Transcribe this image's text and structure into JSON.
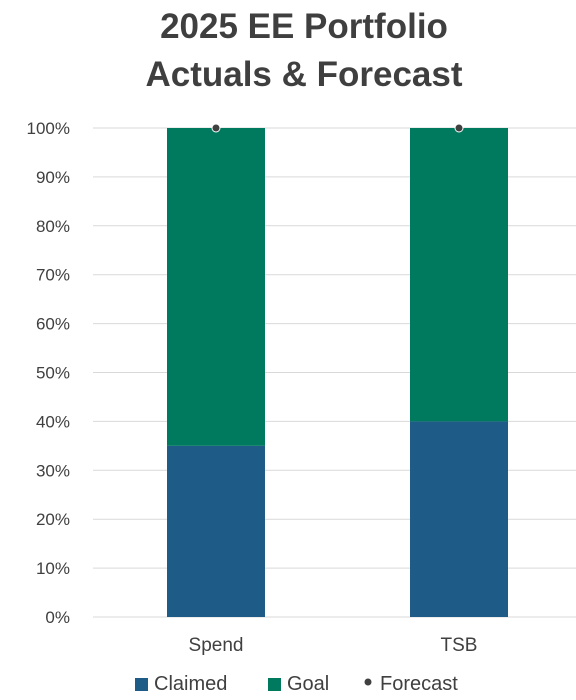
{
  "chart_data": {
    "type": "bar",
    "stacked": true,
    "title": [
      "2025 EE Portfolio",
      "Actuals & Forecast"
    ],
    "categories": [
      "Spend",
      "TSB"
    ],
    "series": [
      {
        "name": "Claimed",
        "type": "bar",
        "color": "#1f5b87",
        "values": [
          35,
          40
        ]
      },
      {
        "name": "Goal",
        "type": "bar",
        "color": "#007a5e",
        "values": [
          65,
          60
        ]
      },
      {
        "name": "Forecast",
        "type": "marker",
        "color": "#404040",
        "values": [
          100,
          100
        ]
      }
    ],
    "ylim": [
      0,
      100
    ],
    "y_ticks": [
      0,
      10,
      20,
      30,
      40,
      50,
      60,
      70,
      80,
      90,
      100
    ],
    "y_tick_labels": [
      "0%",
      "10%",
      "20%",
      "30%",
      "40%",
      "50%",
      "60%",
      "70%",
      "80%",
      "90%",
      "100%"
    ],
    "grid": true,
    "legend_position": "bottom",
    "xlabel": "",
    "ylabel": ""
  }
}
